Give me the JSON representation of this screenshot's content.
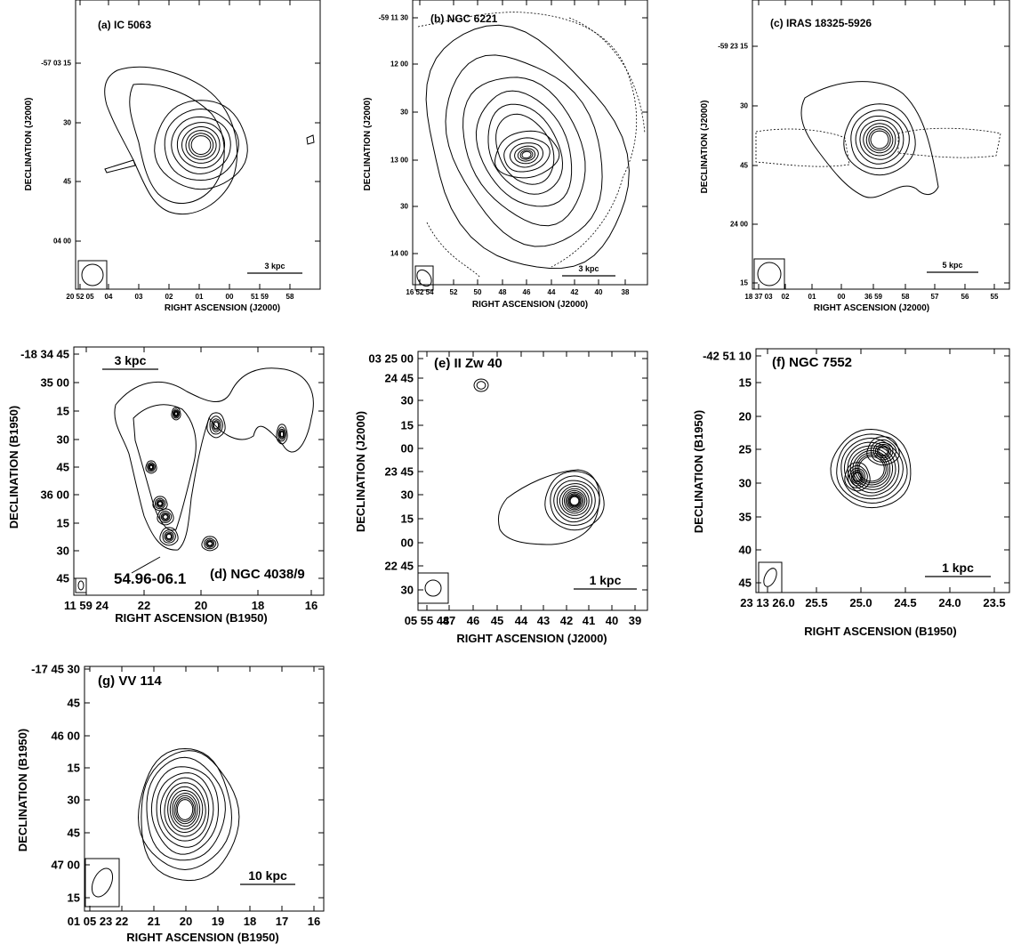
{
  "figure": {
    "panels": [
      {
        "id": "a",
        "title": "(a) IC 5063",
        "xlabel": "RIGHT ASCENSION (J2000)",
        "ylabel": "DECLINATION (J2000)",
        "xticks": [
          "20 52 05",
          "04",
          "03",
          "02",
          "01",
          "00",
          "51 59",
          "58"
        ],
        "yticks": [
          "-57 03 15",
          "30",
          "45",
          "04 00"
        ],
        "scalebar": "3 kpc",
        "beam_tilt_deg": 0
      },
      {
        "id": "b",
        "title": "(b) NGC 6221",
        "xlabel": "RIGHT ASCENSION (J2000)",
        "ylabel": "DECLINATION (J2000)",
        "xticks": [
          "16 52 54",
          "52",
          "50",
          "48",
          "46",
          "44",
          "42",
          "40",
          "38"
        ],
        "yticks": [
          "-59 11 30",
          "12 00",
          "30",
          "13 00",
          "30",
          "14 00"
        ],
        "scalebar": "3 kpc",
        "beam_tilt_deg": -35
      },
      {
        "id": "c",
        "title": "(c) IRAS 18325-5926",
        "xlabel": "RIGHT ASCENSION (J2000)",
        "ylabel": "DECLINATION (J2000)",
        "xticks": [
          "18 37 03",
          "02",
          "01",
          "00",
          "36 59",
          "58",
          "57",
          "56",
          "55"
        ],
        "yticks": [
          "-59 23 15",
          "30",
          "45",
          "24 00",
          "15"
        ],
        "scalebar": "5 kpc",
        "beam_tilt_deg": 0
      },
      {
        "id": "d",
        "title": "(d)  NGC 4038/9",
        "annotation": "54.96-06.1",
        "xlabel": "RIGHT ASCENSION (B1950)",
        "ylabel": "DECLINATION (B1950)",
        "xticks": [
          "11 59 24",
          "22",
          "20",
          "18",
          "16"
        ],
        "yticks": [
          "-18 34 45",
          "35 00",
          "15",
          "30",
          "45",
          "36 00",
          "15",
          "30",
          "45"
        ],
        "scalebar": "3 kpc",
        "beam_tilt_deg": 0
      },
      {
        "id": "e",
        "title": "(e)  II Zw 40",
        "xlabel": "RIGHT ASCENSION (J2000)",
        "ylabel": "DECLINATION (J2000)",
        "xticks": [
          "05 55 48",
          "47",
          "46",
          "45",
          "44",
          "43",
          "42",
          "41",
          "40",
          "39"
        ],
        "yticks": [
          "03 25 00",
          "24 45",
          "30",
          "15",
          "00",
          "23 45",
          "30",
          "15",
          "00",
          "22 45",
          "30"
        ],
        "scalebar": "1 kpc",
        "beam_tilt_deg": 0
      },
      {
        "id": "f",
        "title": "(f)  NGC 7552",
        "xlabel": "RIGHT ASCENSION (B1950)",
        "ylabel": "DECLINATION (B1950)",
        "xticks": [
          "23 13 26.0",
          "25.5",
          "25.0",
          "24.5",
          "24.0",
          "23.5"
        ],
        "yticks": [
          "-42 51 10",
          "15",
          "20",
          "25",
          "30",
          "35",
          "40",
          "45"
        ],
        "scalebar": "1 kpc",
        "beam_tilt_deg": 25
      },
      {
        "id": "g",
        "title": "(g)  VV 114",
        "xlabel": "RIGHT ASCENSION (B1950)",
        "ylabel": "DECLINATION (B1950)",
        "xticks": [
          "01 05 23",
          "22",
          "21",
          "20",
          "19",
          "18",
          "17",
          "16"
        ],
        "yticks": [
          "-17 45 30",
          "45",
          "46 00",
          "15",
          "30",
          "45",
          "47 00",
          "15"
        ],
        "scalebar": "10 kpc",
        "beam_tilt_deg": 25
      }
    ]
  },
  "chart_data": [
    {
      "type": "contour",
      "title": "(a) IC 5063",
      "xlabel": "RIGHT ASCENSION (J2000)",
      "ylabel": "DECLINATION (J2000)",
      "x_ticks": [
        "20 52 05",
        "04",
        "03",
        "02",
        "01",
        "00",
        "51 59",
        "58"
      ],
      "y_ticks": [
        "-57 03 15",
        "30",
        "45",
        "04 00"
      ]
    },
    {
      "type": "contour",
      "title": "(b) NGC 6221",
      "xlabel": "RIGHT ASCENSION (J2000)",
      "ylabel": "DECLINATION (J2000)",
      "x_ticks": [
        "16 52 54",
        "52",
        "50",
        "48",
        "46",
        "44",
        "42",
        "40",
        "38"
      ],
      "y_ticks": [
        "-59 11 30",
        "12 00",
        "30",
        "13 00",
        "30",
        "14 00"
      ]
    },
    {
      "type": "contour",
      "title": "(c) IRAS 18325-5926",
      "xlabel": "RIGHT ASCENSION (J2000)",
      "ylabel": "DECLINATION (J2000)",
      "x_ticks": [
        "18 37 03",
        "02",
        "01",
        "00",
        "36 59",
        "58",
        "57",
        "56",
        "55"
      ],
      "y_ticks": [
        "-59 23 15",
        "30",
        "45",
        "24 00",
        "15"
      ]
    },
    {
      "type": "contour",
      "title": "(d)  NGC 4038/9",
      "xlabel": "RIGHT ASCENSION (B1950)",
      "ylabel": "DECLINATION (B1950)",
      "x_ticks": [
        "11 59 24",
        "22",
        "20",
        "18",
        "16"
      ],
      "y_ticks": [
        "-18 34 45",
        "35 00",
        "15",
        "30",
        "45",
        "36 00",
        "15",
        "30",
        "45"
      ]
    },
    {
      "type": "contour",
      "title": "(e)  II Zw 40",
      "xlabel": "RIGHT ASCENSION (J2000)",
      "ylabel": "DECLINATION (J2000)",
      "x_ticks": [
        "05 55 48",
        "47",
        "46",
        "45",
        "44",
        "43",
        "42",
        "41",
        "40",
        "39"
      ],
      "y_ticks": [
        "03 25 00",
        "24 45",
        "30",
        "15",
        "00",
        "23 45",
        "30",
        "15",
        "00",
        "22 45",
        "30"
      ]
    },
    {
      "type": "contour",
      "title": "(f)  NGC 7552",
      "xlabel": "RIGHT ASCENSION (B1950)",
      "ylabel": "DECLINATION (B1950)",
      "x_ticks": [
        "23 13 26.0",
        "25.5",
        "25.0",
        "24.5",
        "24.0",
        "23.5"
      ],
      "y_ticks": [
        "-42 51 10",
        "15",
        "20",
        "25",
        "30",
        "35",
        "40",
        "45"
      ]
    },
    {
      "type": "contour",
      "title": "(g)  VV 114",
      "xlabel": "RIGHT ASCENSION (B1950)",
      "ylabel": "DECLINATION (B1950)",
      "x_ticks": [
        "01 05 23",
        "22",
        "21",
        "20",
        "19",
        "18",
        "17",
        "16"
      ],
      "y_ticks": [
        "-17 45 30",
        "45",
        "46 00",
        "15",
        "30",
        "45",
        "47 00",
        "15"
      ]
    }
  ]
}
